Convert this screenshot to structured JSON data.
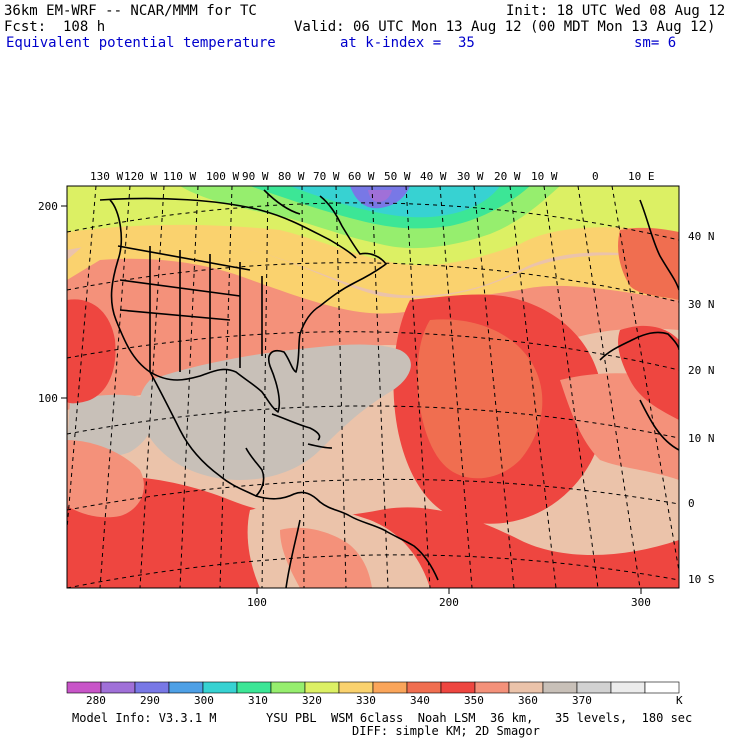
{
  "header": {
    "left_line1": "36km EM-WRF -- NCAR/MMM for TC",
    "left_line2": "Fcst:  108 h",
    "right_line1": "Init: 18 UTC Wed 08 Aug 12",
    "right_line2": "Valid: 06 UTC Mon 13 Aug 12 (00 MDT Mon 13 Aug 12)",
    "field_name": "Equivalent potential temperature",
    "level": "at k-index =  35",
    "smoothing": "sm= 6"
  },
  "map": {
    "lon_labels": [
      "130 W",
      "120 W",
      "110 W",
      "100 W",
      "90 W",
      "80 W",
      "70 W",
      "60 W",
      "50 W",
      "40 W",
      "30 W",
      "20 W",
      "10 W",
      "0",
      "10 E"
    ],
    "lat_labels": [
      "40 N",
      "30 N",
      "20 N",
      "10 N",
      "0",
      "10 S"
    ],
    "grid_y_labels": [
      "200",
      "100"
    ],
    "grid_x_labels": [
      "100",
      "200",
      "300"
    ]
  },
  "colorbar": {
    "labels": [
      "280",
      "290",
      "300",
      "310",
      "320",
      "330",
      "340",
      "350",
      "360",
      "370"
    ],
    "unit": "K",
    "colors": [
      "#c855c8",
      "#a070d8",
      "#7878e6",
      "#4ea0e6",
      "#37d2d2",
      "#3ce696",
      "#96ee6e",
      "#dcf064",
      "#fad26e",
      "#faa55a",
      "#f06e50",
      "#ee4640",
      "#f4917a",
      "#ebc3aa",
      "#c8c0b8",
      "#d2d2d2",
      "#ececec",
      "#ffffff"
    ]
  },
  "footer": {
    "line1_left": "Model Info: V3.3.1 M",
    "line1_right": "YSU PBL  WSM 6class  Noah LSM  36 km,   35 levels,  180 sec",
    "line2": "DIFF: simple KM; 2D Smagor"
  }
}
